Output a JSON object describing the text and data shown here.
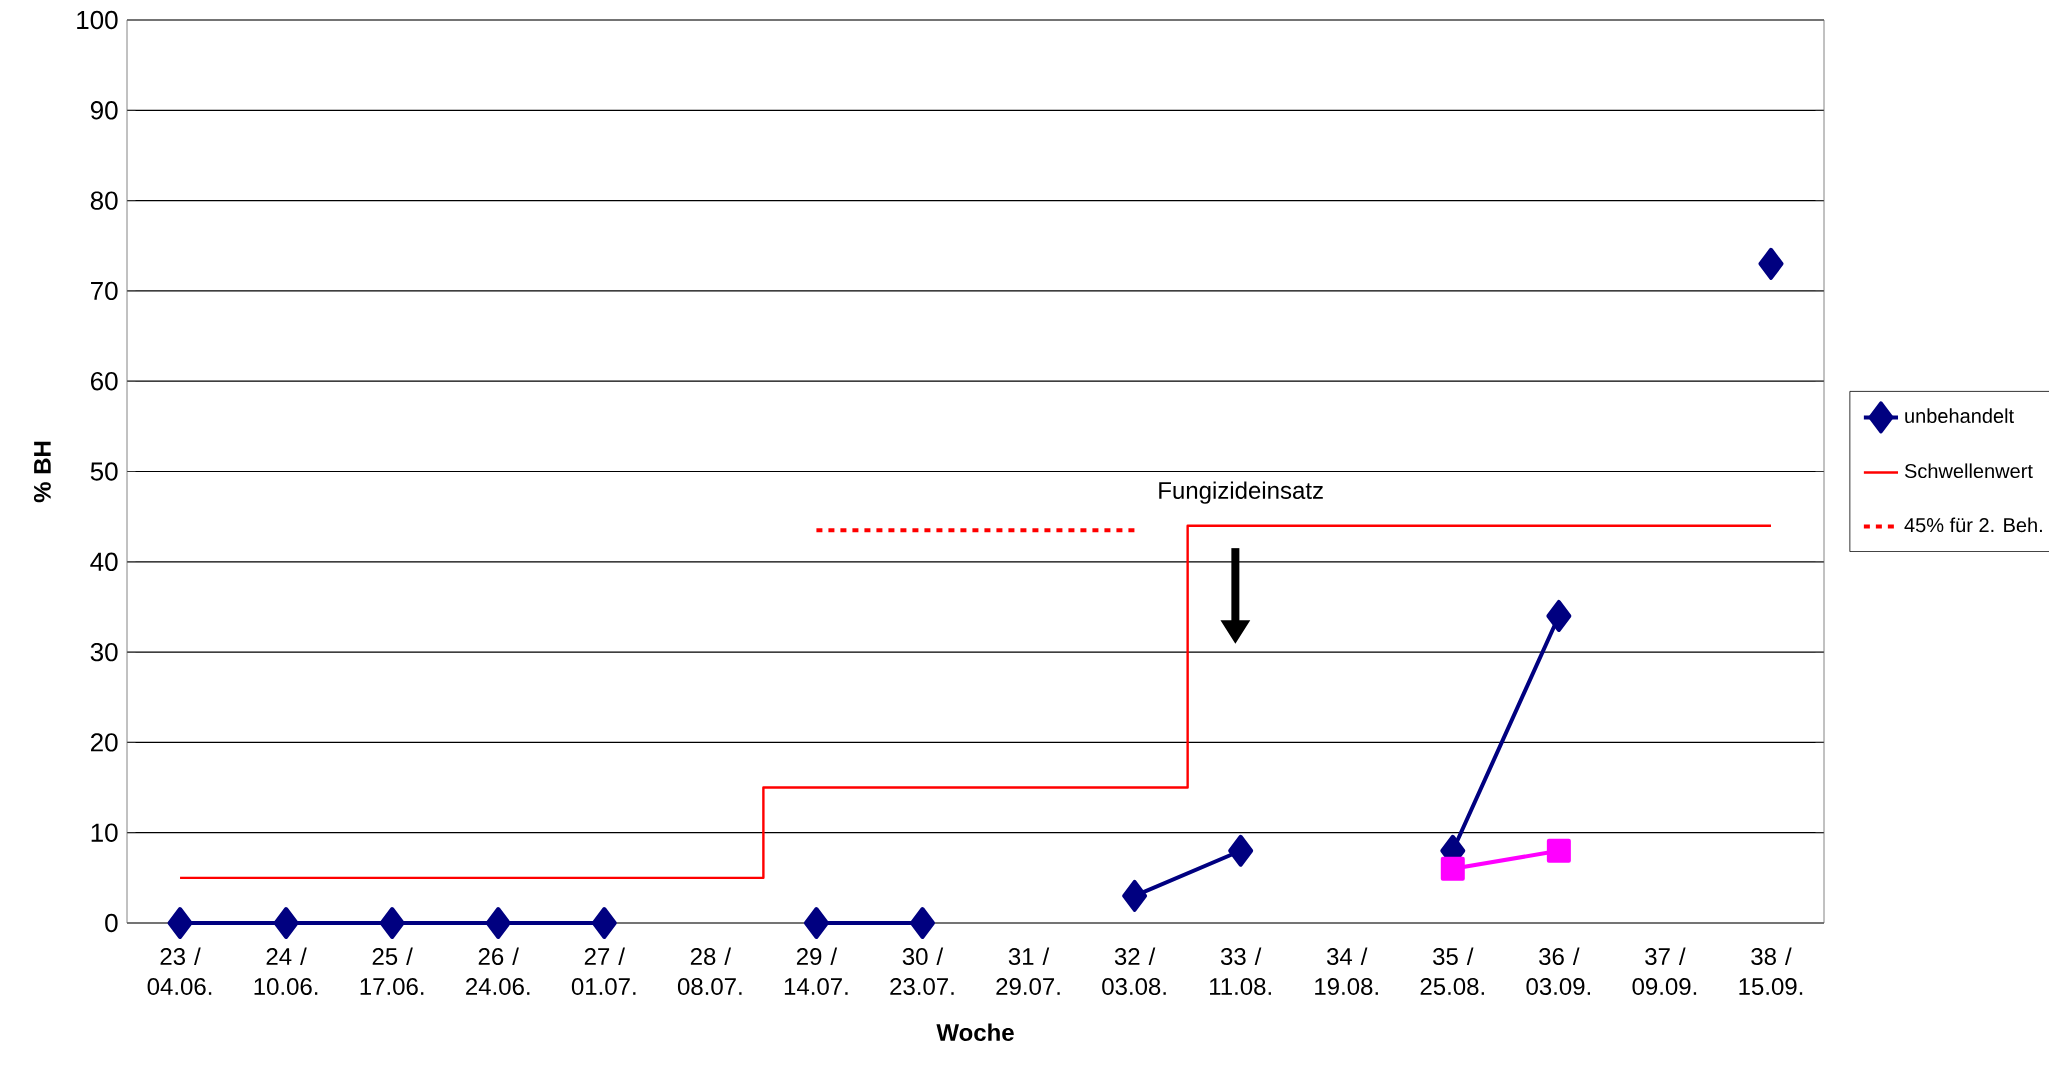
{
  "chart_data": {
    "type": "line",
    "xlabel": "Woche",
    "ylabel": "% BH",
    "categories": [
      "23 / 04.06.",
      "24 / 10.06.",
      "25 / 17.06.",
      "26 / 24.06.",
      "27 / 01.07.",
      "28 / 08.07.",
      "29 / 14.07.",
      "30 / 23.07.",
      "31 / 29.07.",
      "32 / 03.08.",
      "33 / 11.08.",
      "34 / 19.08.",
      "35 / 25.08.",
      "36 / 03.09.",
      "37 / 09.09.",
      "38 / 15.09."
    ],
    "series": [
      {
        "name": "unbehandelt",
        "color": "#000080",
        "marker": "diamond",
        "values": [
          0,
          0,
          0,
          0,
          0,
          null,
          0,
          0,
          null,
          3,
          8,
          null,
          8,
          34,
          null,
          73
        ]
      },
      {
        "color": "#ff00ff",
        "marker": "square",
        "values": [
          null,
          null,
          null,
          null,
          null,
          null,
          null,
          null,
          null,
          null,
          null,
          null,
          6,
          8,
          null,
          null
        ]
      },
      {
        "name": "Schwellenwert",
        "type": "step",
        "color": "#ff0000",
        "values": [
          5,
          5,
          5,
          5,
          5,
          5,
          15,
          15,
          15,
          15,
          44,
          44,
          44,
          44,
          44,
          44
        ]
      },
      {
        "name": "45% für 2. Beh.",
        "color": "#ff0000",
        "line_style": "dashed",
        "values": [
          null,
          null,
          null,
          null,
          null,
          null,
          43.5,
          43.5,
          43.5,
          43.5,
          null,
          null,
          null,
          null,
          null,
          null
        ]
      }
    ],
    "ylim": [
      0,
      100
    ],
    "yticks": [
      0,
      10,
      20,
      30,
      40,
      50,
      60,
      70,
      80,
      90,
      100
    ],
    "grid": "y",
    "legend": "right",
    "annotations": [
      "Fungizideinsatz"
    ]
  }
}
